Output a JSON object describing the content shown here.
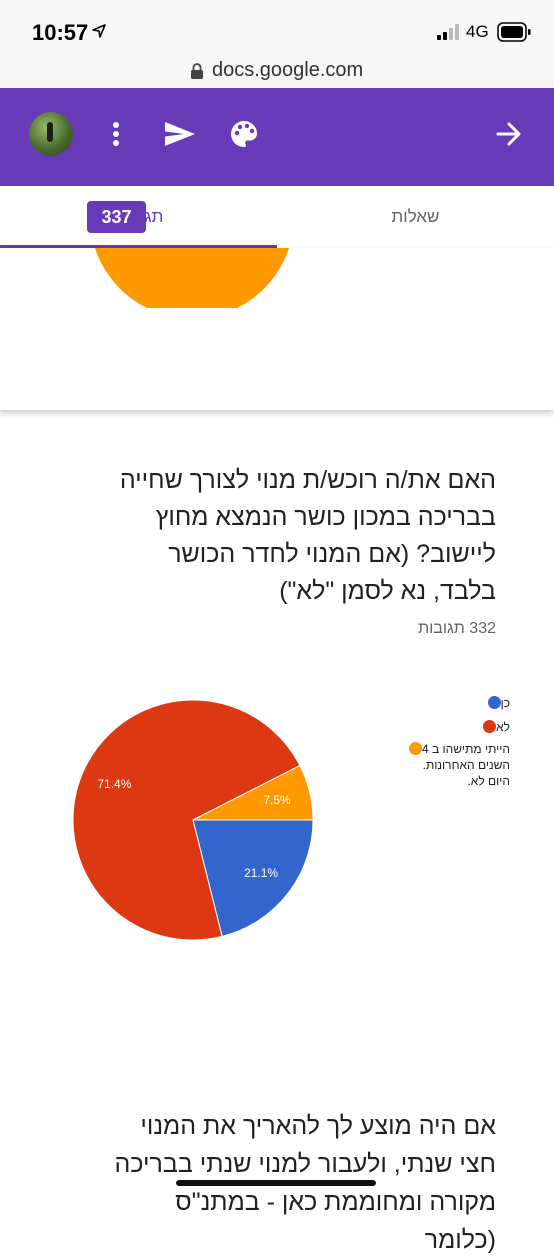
{
  "status_bar": {
    "time": "10:57",
    "network": "4G"
  },
  "browser": {
    "url": "docs.google.com"
  },
  "toolbar": {
    "icons": [
      "avatar",
      "more-vert-icon",
      "send-icon",
      "palette-icon",
      "arrow-forward-icon"
    ],
    "color": "#673ab7"
  },
  "tabs": {
    "responses_label": "תגובות",
    "responses_count": "337",
    "questions_label": "שאלות"
  },
  "question": {
    "title": "האם את/ה רוכש/ת מנוי לצורך שחייה בבריכה במכון כושר הנמצא מחוץ ליישוב? (אם המנוי לחדר הכושר בלבד, נא לסמן \"לא\")",
    "responses_count_label": "332 תגובות"
  },
  "chart_data": {
    "type": "pie",
    "slices": [
      {
        "label": "כן",
        "value": 21.1,
        "label_text": "21.1%",
        "color": "#3366cc"
      },
      {
        "label": "לא",
        "value": 71.4,
        "label_text": "71.4%",
        "color": "#dc3912"
      },
      {
        "label": "הייתי מתישהו ב 4 השנים האחרונות. היום לא.",
        "value": 7.5,
        "label_text": "7.5%",
        "color": "#ff9900"
      }
    ],
    "legend": {
      "position": "right",
      "entries": [
        "כן",
        "לא",
        "הייתי מתישהו ב 4",
        "השנים האחרונות.",
        "היום לא."
      ]
    }
  },
  "next_question": {
    "title": "אם היה מוצע לך להאריך את המנוי חצי שנתי, ולעבור למנוי שנתי בבריכה מקורה ומחוממת כאן - במתנ\"ס (כלומר"
  },
  "previous_chart": {
    "visible_slice_color": "#ff9900"
  }
}
